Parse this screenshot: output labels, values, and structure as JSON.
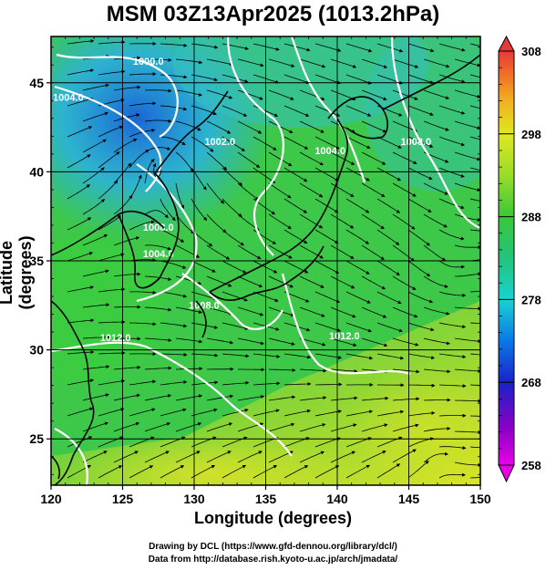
{
  "title": "MSM 03Z13Apr2025 (1013.2hPa)",
  "xlabel": "Longitude (degrees)",
  "ylabel": "Latitude  (degrees)",
  "credit_line1": "Drawing by DCL (https://www.gfd-dennou.org/library/dcl/)",
  "credit_line2": "Data from http://database.rish.kyoto-u.ac.jp/arch/jmadata/",
  "map": {
    "lon_range": [
      120,
      150
    ],
    "lat_range": [
      22.4,
      47.6
    ],
    "lon_ticks": [
      "120",
      "125",
      "130",
      "135",
      "140",
      "145",
      "150"
    ],
    "lat_ticks": [
      "25",
      "30",
      "35",
      "40",
      "45"
    ],
    "gridlines": true,
    "field": "temperature (K) shaded, pressure contours (white), wind streamlines (black)",
    "contour_labels": [
      {
        "text": "1000.0",
        "lon": 126.8,
        "lat": 46.0
      },
      {
        "text": "1004.0",
        "lon": 121.2,
        "lat": 44.0
      },
      {
        "text": "1002.0",
        "lon": 131.8,
        "lat": 41.5
      },
      {
        "text": "1004.0",
        "lon": 139.5,
        "lat": 41.0
      },
      {
        "text": "1008.0",
        "lon": 145.5,
        "lat": 41.5
      },
      {
        "text": "1008.0",
        "lon": 127.5,
        "lat": 36.7
      },
      {
        "text": "1004.0",
        "lon": 127.5,
        "lat": 35.2
      },
      {
        "text": "1008.0",
        "lon": 130.7,
        "lat": 32.3
      },
      {
        "text": "1012.0",
        "lon": 124.5,
        "lat": 30.5
      },
      {
        "text": "1012.0",
        "lon": 140.5,
        "lat": 30.6
      }
    ]
  },
  "colorbar": {
    "min": 258,
    "max": 308,
    "ticks": [
      "308",
      "298",
      "288",
      "278",
      "268",
      "258"
    ],
    "colors": [
      "#e800e8",
      "#8a00c8",
      "#1a22c8",
      "#0a78e8",
      "#1ad2d2",
      "#22c47a",
      "#38c838",
      "#98dc28",
      "#e0e820",
      "#f0b020",
      "#f06a28",
      "#e83838"
    ]
  }
}
